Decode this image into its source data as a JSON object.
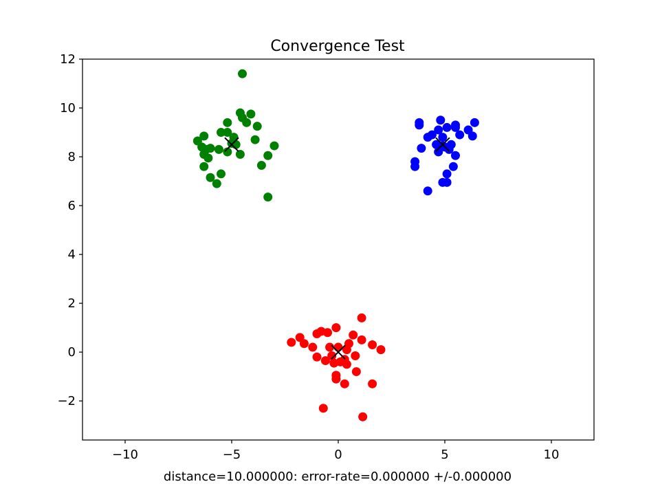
{
  "chart_data": {
    "type": "scatter",
    "title": "Convergence Test",
    "xlabel": "distance=10.000000: error-rate=0.000000 +/-0.000000",
    "ylabel": "",
    "xlim": [
      -12,
      12
    ],
    "ylim": [
      -3.6,
      12
    ],
    "xticks": [
      -10,
      -5,
      0,
      5,
      10
    ],
    "xtick_labels": [
      "−10",
      "−5",
      "0",
      "5",
      "10"
    ],
    "yticks": [
      -2,
      0,
      2,
      4,
      6,
      8,
      10,
      12
    ],
    "ytick_labels": [
      "−2",
      "0",
      "2",
      "4",
      "6",
      "8",
      "10",
      "12"
    ],
    "grid": false,
    "series": [
      {
        "color": "#ff0000",
        "marker": "circle",
        "points": [
          [
            -2.2,
            0.4
          ],
          [
            -1.8,
            0.6
          ],
          [
            -1.6,
            0.35
          ],
          [
            -1.2,
            0.2
          ],
          [
            -1.0,
            -0.2
          ],
          [
            -1.0,
            0.75
          ],
          [
            -0.8,
            0.85
          ],
          [
            -0.5,
            0.8
          ],
          [
            -0.4,
            0.2
          ],
          [
            -0.1,
            1.0
          ],
          [
            -0.6,
            -0.35
          ],
          [
            -0.2,
            -0.45
          ],
          [
            -0.3,
            -0.15
          ],
          [
            0.1,
            -0.4
          ],
          [
            0.3,
            -0.3
          ],
          [
            0.4,
            0.1
          ],
          [
            0.5,
            0.35
          ],
          [
            0.7,
            0.7
          ],
          [
            0.8,
            -0.15
          ],
          [
            0.4,
            -0.5
          ],
          [
            -0.1,
            -0.95
          ],
          [
            -0.1,
            -1.1
          ],
          [
            0.3,
            -1.3
          ],
          [
            0.85,
            -0.8
          ],
          [
            1.1,
            0.5
          ],
          [
            1.1,
            1.4
          ],
          [
            1.6,
            0.3
          ],
          [
            2.0,
            0.1
          ],
          [
            1.6,
            -1.3
          ],
          [
            -0.7,
            -2.3
          ],
          [
            1.15,
            -2.65
          ],
          [
            0.0,
            0.2
          ]
        ]
      },
      {
        "color": "#008000",
        "marker": "circle",
        "points": [
          [
            -4.5,
            11.4
          ],
          [
            -4.6,
            9.8
          ],
          [
            -4.5,
            9.6
          ],
          [
            -4.3,
            9.4
          ],
          [
            -4.1,
            9.75
          ],
          [
            -3.8,
            9.25
          ],
          [
            -5.2,
            9.4
          ],
          [
            -5.5,
            9.0
          ],
          [
            -5.2,
            9.0
          ],
          [
            -4.9,
            8.8
          ],
          [
            -6.6,
            8.65
          ],
          [
            -6.3,
            8.85
          ],
          [
            -6.4,
            8.4
          ],
          [
            -6.2,
            8.3
          ],
          [
            -6.0,
            8.35
          ],
          [
            -5.6,
            8.3
          ],
          [
            -5.2,
            8.2
          ],
          [
            -4.8,
            8.5
          ],
          [
            -4.6,
            8.1
          ],
          [
            -3.9,
            8.7
          ],
          [
            -3.0,
            8.45
          ],
          [
            -3.3,
            8.05
          ],
          [
            -3.6,
            7.65
          ],
          [
            -6.3,
            7.6
          ],
          [
            -6.1,
            7.95
          ],
          [
            -6.3,
            8.1
          ],
          [
            -6.0,
            7.15
          ],
          [
            -5.5,
            7.3
          ],
          [
            -5.7,
            6.9
          ],
          [
            -3.3,
            6.35
          ],
          [
            -5.0,
            8.55
          ]
        ]
      },
      {
        "color": "#0000ff",
        "marker": "circle",
        "points": [
          [
            3.8,
            9.4
          ],
          [
            3.8,
            9.3
          ],
          [
            4.2,
            8.8
          ],
          [
            4.4,
            8.9
          ],
          [
            4.8,
            9.5
          ],
          [
            4.7,
            9.1
          ],
          [
            5.1,
            9.2
          ],
          [
            5.5,
            9.2
          ],
          [
            5.5,
            9.3
          ],
          [
            6.1,
            9.1
          ],
          [
            6.4,
            9.4
          ],
          [
            6.3,
            8.85
          ],
          [
            5.7,
            8.9
          ],
          [
            4.9,
            8.8
          ],
          [
            4.6,
            8.5
          ],
          [
            5.0,
            8.4
          ],
          [
            5.3,
            8.5
          ],
          [
            4.7,
            8.2
          ],
          [
            5.2,
            8.3
          ],
          [
            3.9,
            8.35
          ],
          [
            5.5,
            8.05
          ],
          [
            3.6,
            7.8
          ],
          [
            3.6,
            7.6
          ],
          [
            5.4,
            7.6
          ],
          [
            5.1,
            7.3
          ],
          [
            4.9,
            6.95
          ],
          [
            5.1,
            6.95
          ],
          [
            4.2,
            6.6
          ],
          [
            4.9,
            8.45
          ]
        ]
      }
    ],
    "centroids": {
      "color": "#000000",
      "marker": "x",
      "points": [
        [
          0.0,
          0.0
        ],
        [
          -5.0,
          8.5
        ],
        [
          4.9,
          8.5
        ]
      ]
    }
  }
}
